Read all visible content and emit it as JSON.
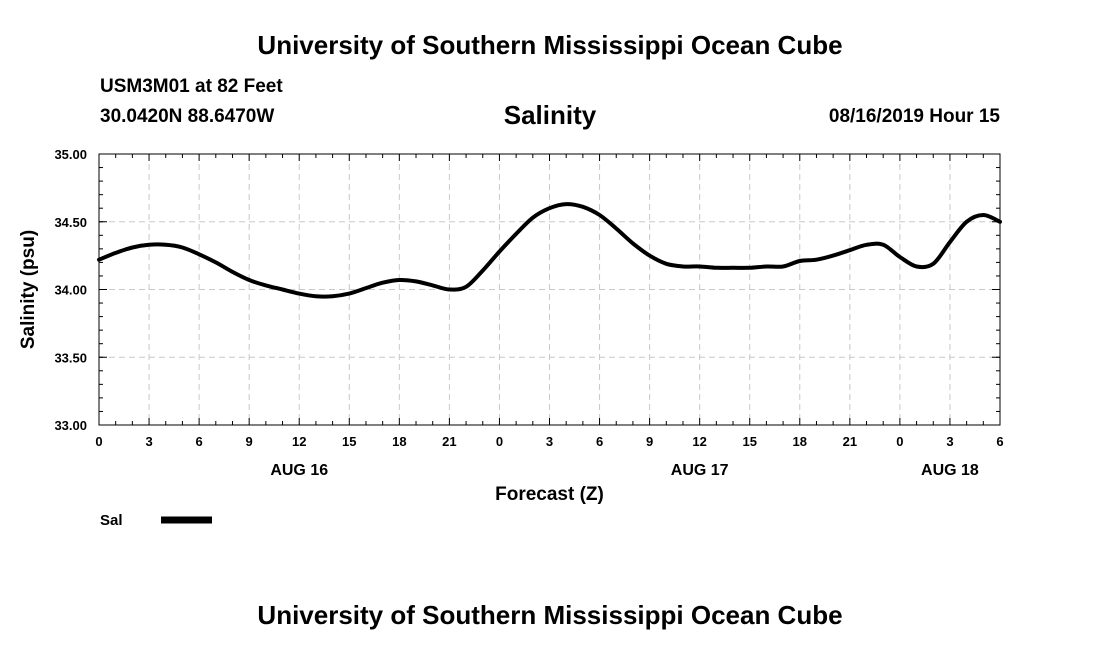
{
  "header": {
    "title": "University of Southern Mississippi Ocean Cube",
    "station": "USM3M01 at 82 Feet",
    "coords": "30.0420N 88.6470W",
    "chart_title": "Salinity",
    "datetime": "08/16/2019 Hour 15"
  },
  "footer": {
    "title": "University of Southern Mississippi Ocean Cube"
  },
  "chart_data": {
    "type": "line",
    "title": "Salinity",
    "xlabel": "Forecast (Z)",
    "ylabel": "Salinity (psu)",
    "ylim": [
      33.0,
      35.0
    ],
    "y_ticks": [
      "33.00",
      "33.50",
      "34.00",
      "34.50",
      "35.00"
    ],
    "xlim": [
      0,
      54
    ],
    "x_tick_labels": [
      "0",
      "3",
      "6",
      "9",
      "12",
      "15",
      "18",
      "21",
      "0",
      "3",
      "6",
      "9",
      "12",
      "15",
      "18",
      "21",
      "0",
      "3",
      "6"
    ],
    "day_labels": [
      {
        "label": "AUG 16",
        "hour": 12
      },
      {
        "label": "AUG 17",
        "hour": 36
      },
      {
        "label": "AUG 18",
        "hour": 51
      }
    ],
    "grid": true,
    "series": [
      {
        "name": "Sal",
        "color": "#000000",
        "x": [
          0,
          1,
          2,
          3,
          4,
          5,
          6,
          7,
          8,
          9,
          10,
          11,
          12,
          13,
          14,
          15,
          16,
          17,
          18,
          19,
          20,
          21,
          22,
          23,
          24,
          25,
          26,
          27,
          28,
          29,
          30,
          31,
          32,
          33,
          34,
          35,
          36,
          37,
          38,
          39,
          40,
          41,
          42,
          43,
          44,
          45,
          46,
          47,
          48,
          49,
          50,
          51,
          52,
          53,
          54
        ],
        "values": [
          34.22,
          34.27,
          34.31,
          34.33,
          34.33,
          34.31,
          34.26,
          34.2,
          34.13,
          34.07,
          34.03,
          34.0,
          33.97,
          33.95,
          33.95,
          33.97,
          34.01,
          34.05,
          34.07,
          34.06,
          34.03,
          34.0,
          34.02,
          34.14,
          34.28,
          34.41,
          34.53,
          34.6,
          34.63,
          34.61,
          34.55,
          34.45,
          34.34,
          34.25,
          34.19,
          34.17,
          34.17,
          34.16,
          34.16,
          34.16,
          34.17,
          34.17,
          34.21,
          34.22,
          34.25,
          34.29,
          34.33,
          34.33,
          34.24,
          34.17,
          34.19,
          34.35,
          34.5,
          34.55,
          34.5
        ]
      }
    ],
    "legend": {
      "label": "Sal",
      "position": "bottom-left"
    }
  }
}
